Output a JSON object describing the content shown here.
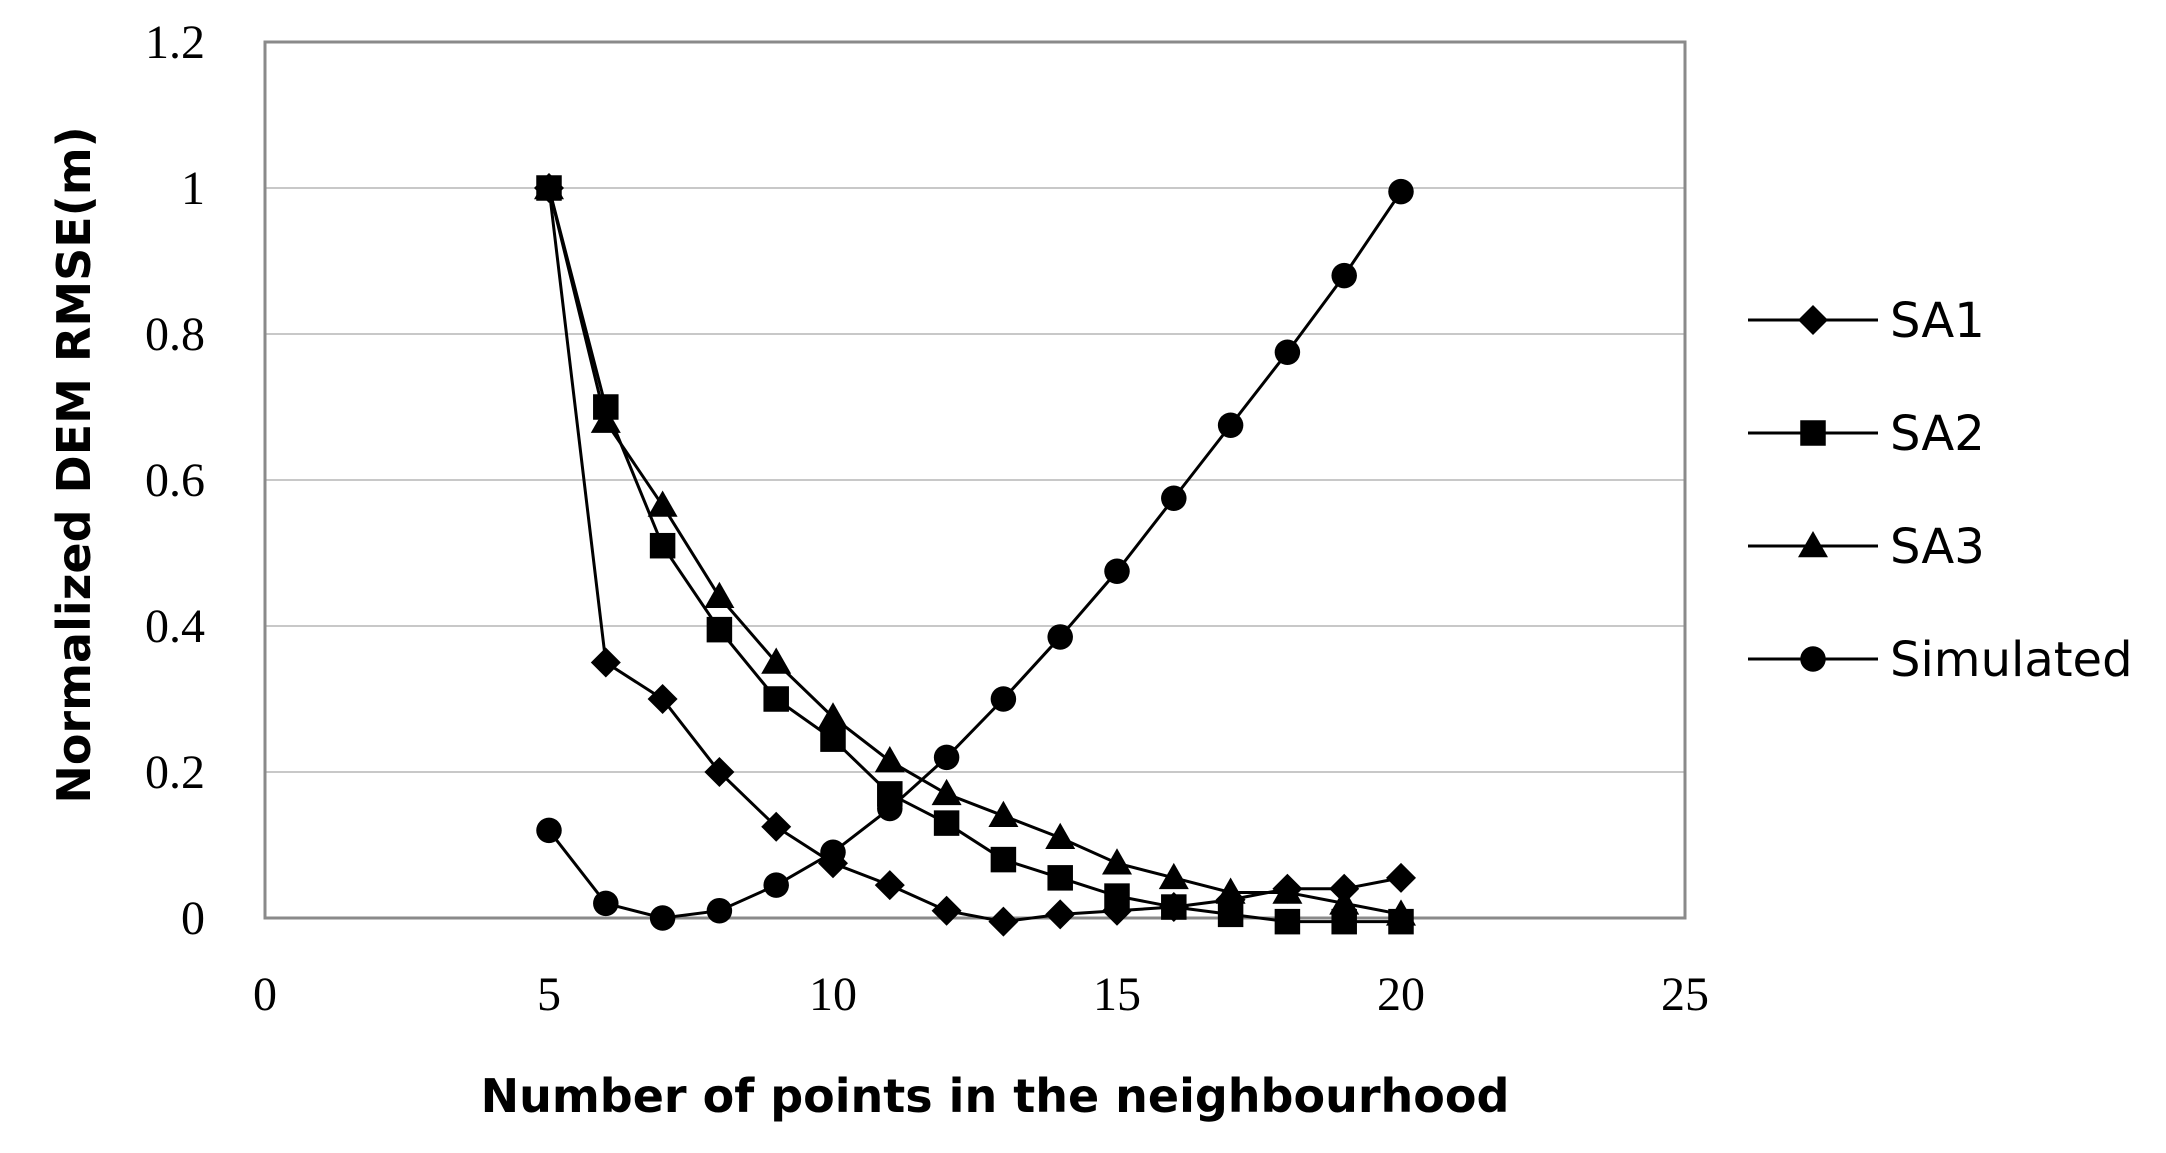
{
  "chart_data": {
    "type": "line",
    "title": "",
    "xlabel": "Number of points in the neighbourhood",
    "ylabel": "Normalized DEM RMSE(m)",
    "xlim": [
      0,
      25
    ],
    "ylim": [
      0,
      1.2
    ],
    "x_ticks": [
      0,
      5,
      10,
      15,
      20,
      25
    ],
    "y_ticks": [
      0,
      0.2,
      0.4,
      0.6,
      0.8,
      1,
      1.2
    ],
    "y_tick_labels": [
      "0",
      "0.2",
      "0.4",
      "0.6",
      "0.8",
      "1",
      "1.2"
    ],
    "grid": "horizontal",
    "legend_position": "right",
    "x": [
      5,
      6,
      7,
      8,
      9,
      10,
      11,
      12,
      13,
      14,
      15,
      16,
      17,
      18,
      19,
      20
    ],
    "series": [
      {
        "name": "SA1",
        "marker": "diamond",
        "values": [
          1.0,
          0.35,
          0.3,
          0.2,
          0.125,
          0.075,
          0.045,
          0.01,
          -0.005,
          0.005,
          0.01,
          0.015,
          0.025,
          0.04,
          0.04,
          0.055
        ]
      },
      {
        "name": "SA2",
        "marker": "square",
        "values": [
          1.0,
          0.7,
          0.51,
          0.395,
          0.3,
          0.245,
          0.17,
          0.13,
          0.08,
          0.055,
          0.03,
          0.015,
          0.005,
          -0.005,
          -0.005,
          -0.005
        ]
      },
      {
        "name": "SA3",
        "marker": "triangle",
        "values": [
          1.0,
          0.68,
          0.565,
          0.44,
          0.35,
          0.275,
          0.215,
          0.17,
          0.14,
          0.11,
          0.075,
          0.055,
          0.035,
          0.035,
          0.02,
          0.005
        ]
      },
      {
        "name": "Simulated",
        "marker": "circle",
        "values": [
          0.12,
          0.02,
          0.0,
          0.01,
          0.045,
          0.09,
          0.15,
          0.22,
          0.3,
          0.385,
          0.475,
          0.575,
          0.675,
          0.775,
          0.88,
          0.995
        ]
      }
    ]
  }
}
